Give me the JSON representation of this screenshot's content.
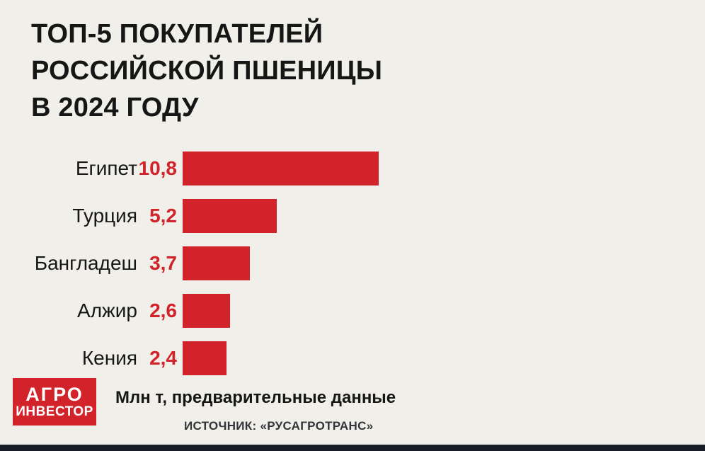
{
  "title_lines": [
    "ТОП-5 ПОКУПАТЕЛЕЙ",
    "РОССИЙСКОЙ ПШЕНИЦЫ",
    "В 2024 ГОДУ"
  ],
  "chart_data": {
    "type": "bar",
    "orientation": "horizontal",
    "title": "ТОП-5 ПОКУПАТЕЛЕЙ РОССИЙСКОЙ ПШЕНИЦЫ В 2024 ГОДУ",
    "categories": [
      "Египет",
      "Турция",
      "Бангладеш",
      "Алжир",
      "Кения"
    ],
    "values": [
      10.8,
      5.2,
      3.7,
      2.6,
      2.4
    ],
    "value_labels": [
      "10,8",
      "5,2",
      "3,7",
      "2,6",
      "2,4"
    ],
    "unit": "Млн т",
    "xlim": [
      0,
      10.8
    ],
    "grid": false,
    "legend": "none",
    "bar_color": "#d2232a"
  },
  "footer": {
    "note": "Млн т, предварительные данные",
    "source": "ИСТОЧНИК: «РУСАГРОТРАНС»"
  },
  "logo": {
    "line1": "АГРО",
    "line2": "ИНВЕСТОР"
  },
  "colors": {
    "background": "#f1efe9",
    "accent_red": "#d2232a",
    "text": "#161616",
    "bottom_strip": "#171c26"
  }
}
